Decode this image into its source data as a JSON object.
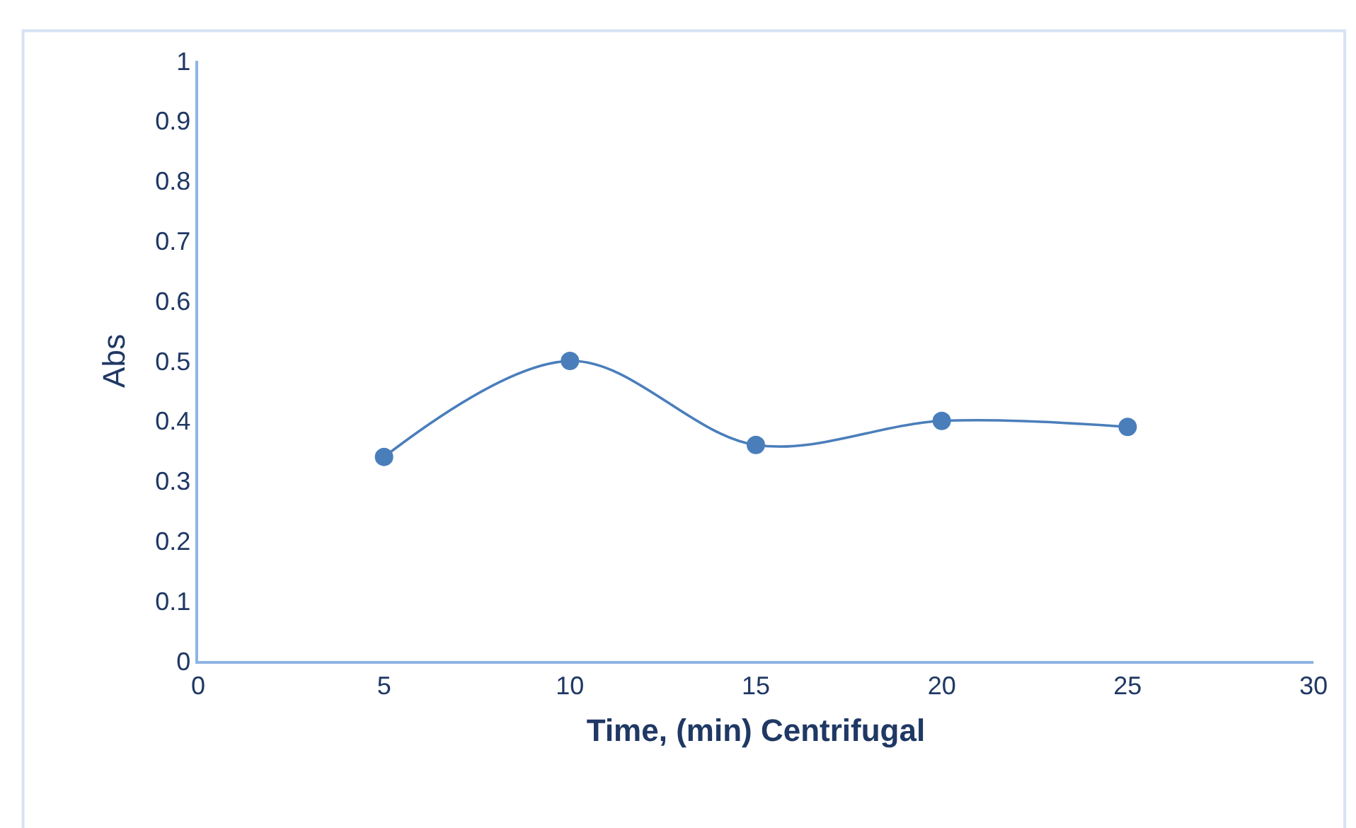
{
  "chart_data": {
    "type": "line",
    "xlabel": "Time, (min) Centrifugal",
    "ylabel": "Abs",
    "x": [
      5,
      10,
      15,
      20,
      25
    ],
    "series": [
      {
        "color": "#4a7ebb",
        "values": [
          0.34,
          0.5,
          0.36,
          0.4,
          0.39
        ]
      }
    ],
    "xlim": [
      0,
      30
    ],
    "xticks": [
      0,
      5,
      10,
      15,
      20,
      25,
      30
    ],
    "ylim": [
      0,
      1
    ],
    "yticks": [
      0,
      0.1,
      0.2,
      0.3,
      0.4,
      0.5,
      0.6,
      0.7,
      0.8,
      0.9,
      1
    ],
    "legend": false,
    "marker": "circle",
    "line_style": "solid"
  }
}
